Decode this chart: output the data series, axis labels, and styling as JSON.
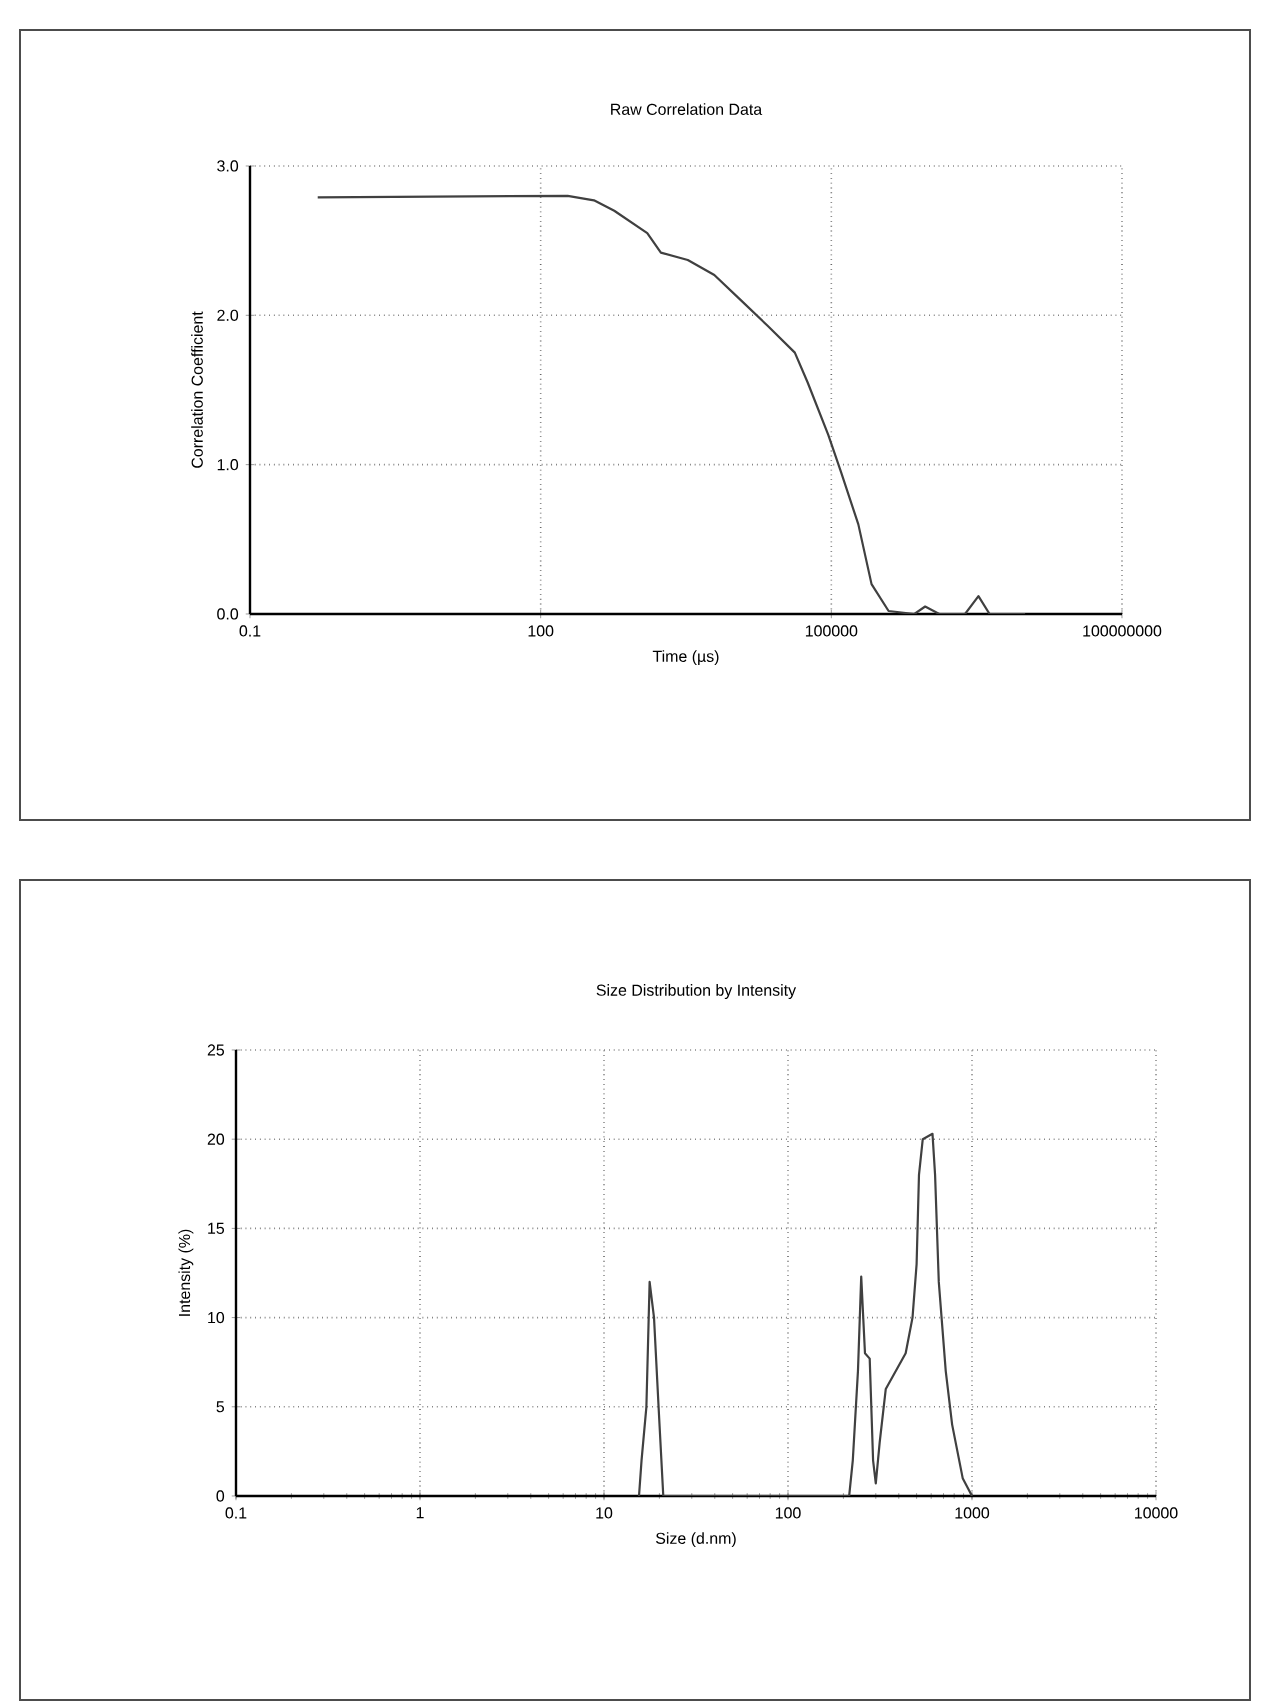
{
  "chart_data": [
    {
      "type": "line",
      "title": "Raw Correlation Data",
      "xlabel": "Time (µs)",
      "ylabel": "Correlation Coefficient",
      "log": "x",
      "grid": true,
      "color": "#404040",
      "x": [
        0.5,
        190,
        355,
        575,
        1260,
        1740,
        3300,
        6200,
        11700,
        22000,
        42000,
        57000,
        93000,
        126000,
        190000,
        260000,
        390000,
        720000,
        930000,
        1300000,
        2400000,
        3300000,
        4300000,
        10000000
      ],
      "values": [
        2.79,
        2.8,
        2.77,
        2.7,
        2.55,
        2.42,
        2.37,
        2.27,
        2.1,
        1.93,
        1.75,
        1.55,
        1.2,
        0.95,
        0.6,
        0.2,
        0.02,
        0,
        0.05,
        0,
        0,
        0.12,
        0,
        0
      ],
      "xlim": [
        0.1,
        100000000
      ],
      "ylim": [
        0,
        3
      ],
      "xticks": [
        0.1,
        100,
        100000,
        100000000
      ],
      "yticks": [
        {
          "value": 0,
          "label": "0.0"
        },
        {
          "value": 1,
          "label": "1.0"
        },
        {
          "value": 2,
          "label": "2.0"
        },
        {
          "value": 3,
          "label": "3.0"
        }
      ]
    },
    {
      "type": "line",
      "title": "Size Distribution by Intensity",
      "xlabel": "Size (d.nm)",
      "ylabel": "Intensity (%)",
      "log": "x",
      "grid": true,
      "color": "#404040",
      "x": [
        15.5,
        16,
        17,
        17.7,
        18.7,
        19.8,
        21,
        215,
        225,
        240,
        250,
        262,
        278,
        290,
        300,
        315,
        340,
        436,
        475,
        500,
        515,
        540,
        610,
        630,
        660,
        720,
        780,
        890,
        1000
      ],
      "values": [
        0,
        2,
        5,
        12,
        10,
        5,
        0,
        0,
        2,
        7,
        12.3,
        8,
        7.7,
        2,
        0.7,
        3,
        6,
        8,
        10,
        13,
        18,
        20,
        20.3,
        18,
        12,
        7,
        4,
        1,
        0
      ],
      "xlim": [
        0.1,
        10000
      ],
      "ylim": [
        0,
        25
      ],
      "xticks": [
        0.1,
        1,
        10,
        100,
        1000,
        10000
      ],
      "yticks": [
        0,
        5,
        10,
        15,
        20,
        25
      ]
    }
  ]
}
